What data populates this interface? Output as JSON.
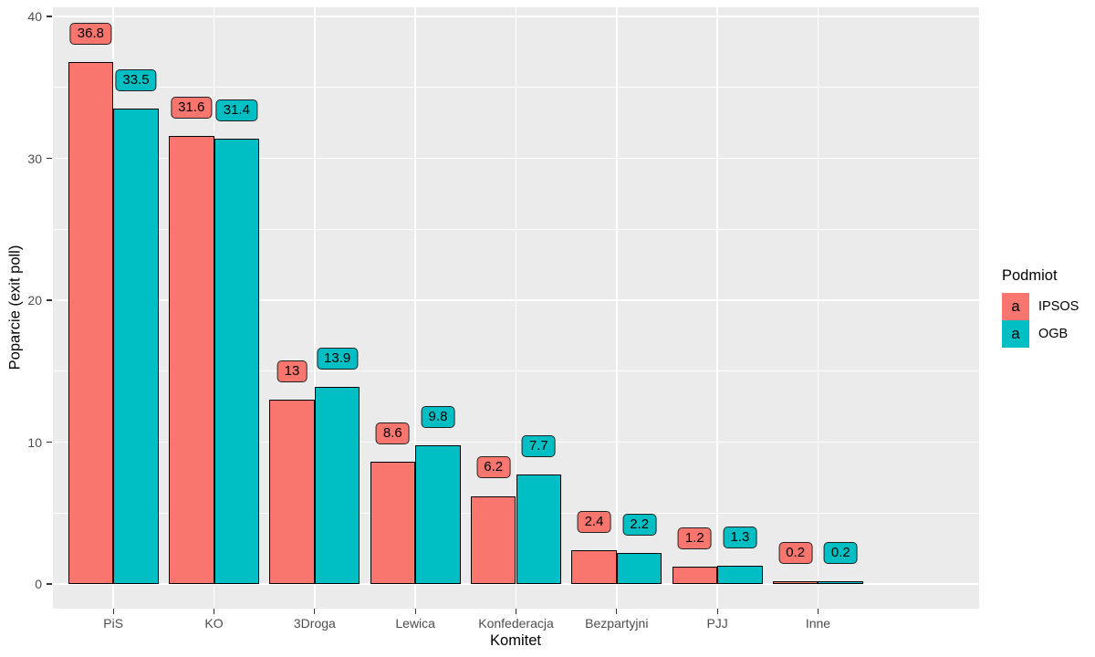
{
  "chart_data": {
    "type": "bar",
    "title": "",
    "xlabel": "Komitet",
    "ylabel": "Poparcie (exit poll)",
    "categories": [
      "PiS",
      "KO",
      "3Droga",
      "Lewica",
      "Konfederacja",
      "Bezpartyjni",
      "PJJ",
      "Inne"
    ],
    "series": [
      {
        "name": "IPSOS",
        "color": "#F8766D",
        "values": [
          36.8,
          31.6,
          13,
          8.6,
          6.2,
          2.4,
          1.2,
          0.2
        ],
        "data_labels": [
          "36.8",
          "31.6",
          "13",
          "8.6",
          "6.2",
          "2.4",
          "1.2",
          "0.2"
        ]
      },
      {
        "name": "OGB",
        "color": "#00BFC4",
        "values": [
          33.5,
          31.4,
          13.9,
          9.8,
          7.7,
          2.2,
          1.3,
          0.2
        ],
        "data_labels": [
          "33.5",
          "31.4",
          "13.9",
          "9.8",
          "7.7",
          "2.2",
          "1.3",
          "0.2"
        ]
      }
    ],
    "y_ticks": [
      0,
      10,
      20,
      30,
      40
    ],
    "y_minor_ticks": [
      5,
      15,
      25,
      35
    ],
    "ylim": [
      -1.9,
      40.6
    ],
    "grid": true,
    "legend": {
      "title": "Podmiot",
      "position": "right",
      "key_glyph": "a"
    }
  },
  "colors": {
    "panel_background": "#EBEBEB",
    "gridline": "#FFFFFF",
    "bar_border": "#000000",
    "tick_text": "#4D4D4D",
    "tick_mark": "#333333",
    "title_text": "#000000",
    "figure_background": "#FFFFFF"
  }
}
